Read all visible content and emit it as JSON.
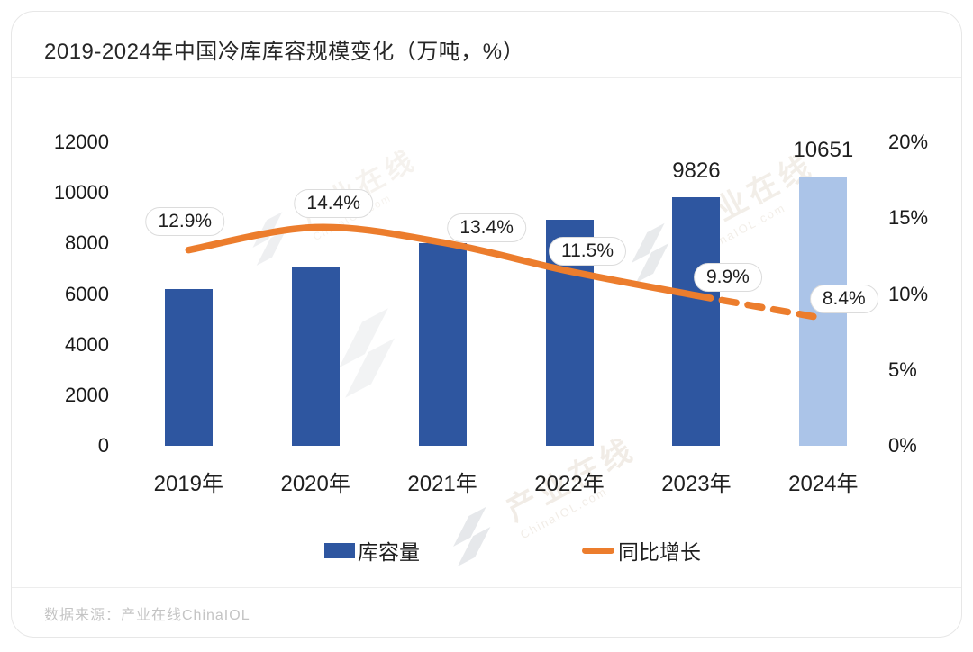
{
  "card": {
    "title": "2019-2024年中国冷库库容规模变化（万吨，%）",
    "footer": "数据来源：产业在线ChinaIOL"
  },
  "chart_data": {
    "type": "bar",
    "title": "2019-2024年中国冷库库容规模变化（万吨，%）",
    "categories": [
      "2019年",
      "2020年",
      "2021年",
      "2022年",
      "2023年",
      "2024年"
    ],
    "series": [
      {
        "name": "库容量",
        "type": "bar",
        "axis": "left",
        "values": [
          6180,
          7070,
          8020,
          8940,
          9826,
          10651
        ],
        "value_labels": [
          "",
          "",
          "",
          "",
          "9826",
          "10651"
        ],
        "forecast_index": 5
      },
      {
        "name": "同比增长",
        "type": "line",
        "axis": "right",
        "values": [
          12.9,
          14.4,
          13.4,
          11.5,
          9.9,
          8.4
        ],
        "point_labels": [
          "12.9%",
          "14.4%",
          "13.4%",
          "11.5%",
          "9.9%",
          "8.4%"
        ],
        "dashed_from_index": 4
      }
    ],
    "left_axis": {
      "ticks": [
        "12000",
        "10000",
        "8000",
        "6000",
        "4000",
        "2000",
        "0"
      ],
      "min": 0,
      "max": 12000
    },
    "right_axis": {
      "ticks": [
        "20%",
        "15%",
        "10%",
        "5%",
        "0%"
      ],
      "min": 0,
      "max": 20
    },
    "legend": [
      {
        "label": "库容量",
        "swatch": "bar"
      },
      {
        "label": "同比增长",
        "swatch": "line"
      }
    ],
    "legend_position": "bottom",
    "grid": false,
    "colors": {
      "bar": "#2e56a0",
      "bar_forecast": "#abc4e8",
      "line": "#ec7d2d",
      "text": "#1f1f1f",
      "muted": "#c4c4c4",
      "pill_border": "#dcdcdc",
      "watermark_gray": "#9aa2ad",
      "watermark_tan": "#c8b49b"
    }
  },
  "watermark": {
    "text": "产业在线",
    "subtext": "ChinaIOL.com"
  }
}
